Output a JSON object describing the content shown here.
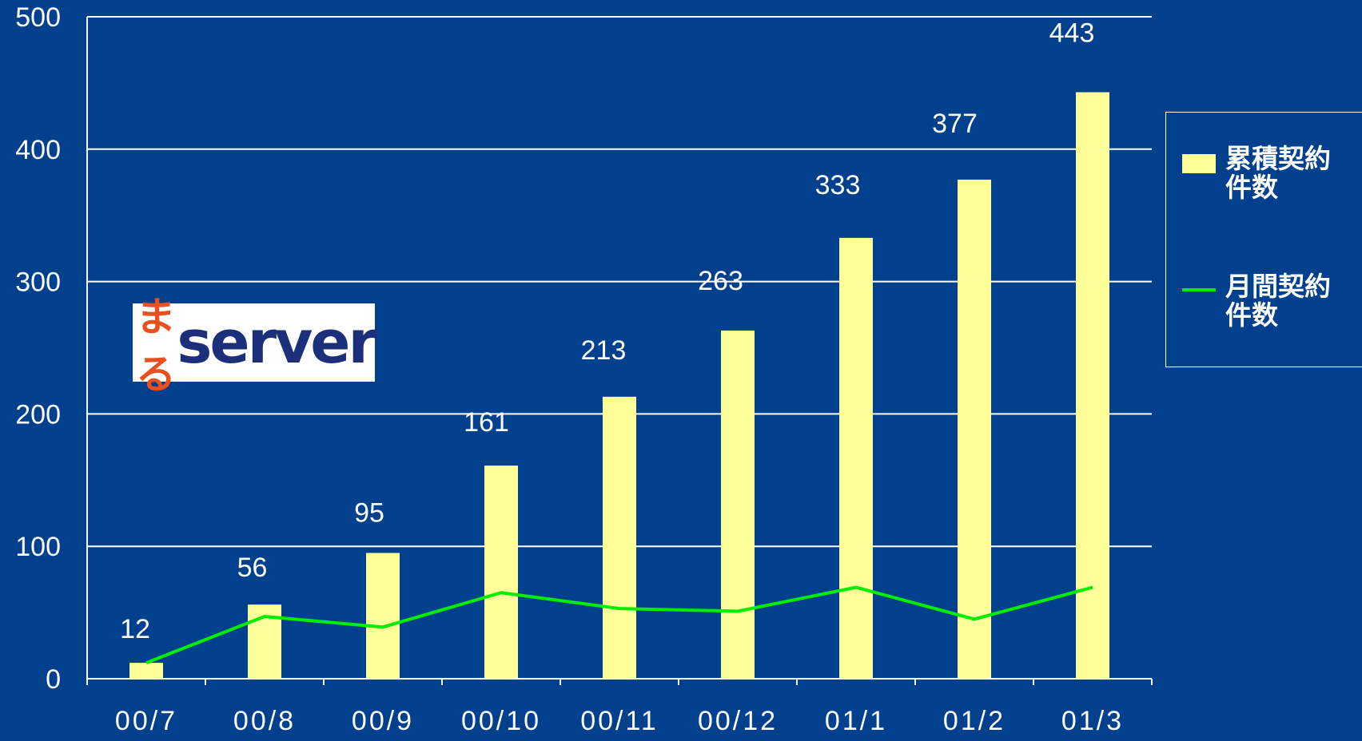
{
  "chart_data": {
    "type": "bar",
    "categories": [
      "00/7",
      "00/8",
      "00/9",
      "00/10",
      "00/11",
      "00/12",
      "01/1",
      "01/2",
      "01/3"
    ],
    "series": [
      {
        "name": "累積契約件数",
        "type": "bar",
        "color": "#ffff99",
        "values": [
          12,
          56,
          95,
          161,
          213,
          263,
          333,
          377,
          443
        ]
      },
      {
        "name": "月間契約件数",
        "type": "line",
        "color": "#00ee00",
        "values": [
          12,
          47,
          39,
          65,
          53,
          51,
          69,
          45,
          69
        ]
      }
    ],
    "ylim": [
      0,
      500
    ],
    "yticks": [
      0,
      100,
      200,
      300,
      400,
      500
    ],
    "grid": true,
    "logo": {
      "mark": "まる",
      "text": "server"
    }
  }
}
